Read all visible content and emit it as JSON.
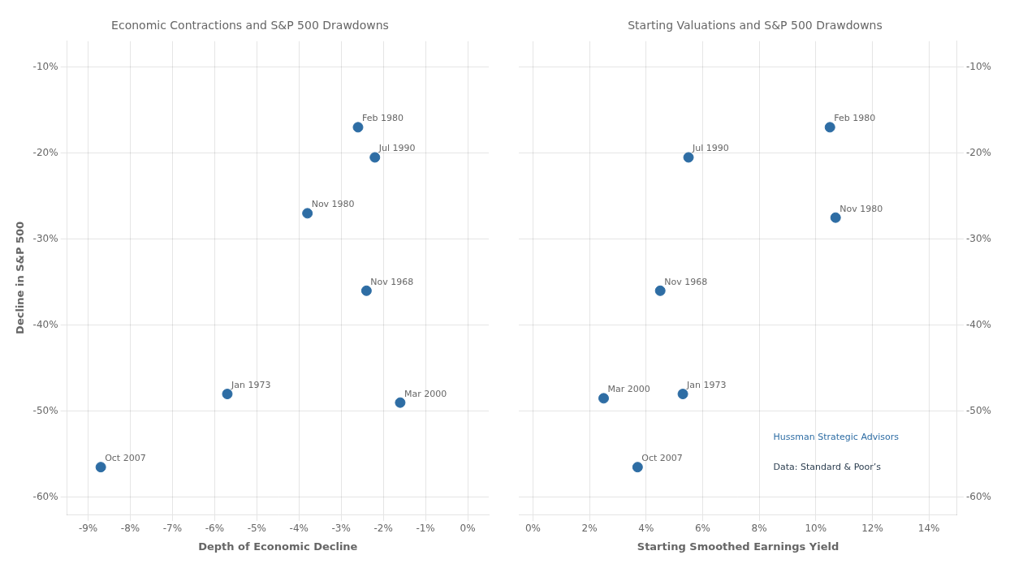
{
  "chart_data": [
    {
      "type": "scatter",
      "title": "Economic Contractions and S&P 500 Drawdowns",
      "x_label": "Depth of Economic Decline",
      "y_label": "Decline in S&P 500",
      "x": [
        -2.6,
        -2.2,
        -3.8,
        -2.4,
        -5.7,
        -1.6,
        -8.7
      ],
      "values": [
        -17.0,
        -20.5,
        -27.0,
        -36.0,
        -48.0,
        -49.0,
        -56.5
      ],
      "point_labels": [
        "Feb 1980",
        "Jul 1990",
        "Nov 1980",
        "Nov 1968",
        "Jan 1973",
        "Mar 2000",
        "Oct 2007"
      ],
      "color": "#2e6da4",
      "xlim": [
        -9.5,
        0.5
      ],
      "xticks": [
        {
          "value": -9,
          "label": "-9%"
        },
        {
          "value": -8,
          "label": "-8%"
        },
        {
          "value": -7,
          "label": "-7%"
        },
        {
          "value": -6,
          "label": "-6%"
        },
        {
          "value": -5,
          "label": "-5%"
        },
        {
          "value": -4,
          "label": "-4%"
        },
        {
          "value": -3,
          "label": "-3%"
        },
        {
          "value": -2,
          "label": "-2%"
        },
        {
          "value": -1,
          "label": "-1%"
        },
        {
          "value": 0,
          "label": "0%"
        }
      ],
      "ylim": [
        -62,
        -7
      ],
      "yticks": [
        {
          "value": -10,
          "label": "-10%"
        },
        {
          "value": -20,
          "label": "-20%"
        },
        {
          "value": -30,
          "label": "-30%"
        },
        {
          "value": -40,
          "label": "-40%"
        },
        {
          "value": -50,
          "label": "-50%"
        },
        {
          "value": -60,
          "label": "-60%"
        }
      ],
      "grid": true
    },
    {
      "type": "scatter",
      "title": "Starting Valuations and S&P 500 Drawdowns",
      "x_label": "Starting Smoothed Earnings Yield",
      "x": [
        10.5,
        5.5,
        10.7,
        4.5,
        5.3,
        2.5,
        3.7
      ],
      "values": [
        -17.0,
        -20.5,
        -27.5,
        -36.0,
        -48.0,
        -48.5,
        -56.5
      ],
      "point_labels": [
        "Feb 1980",
        "Jul 1990",
        "Nov 1980",
        "Nov 1968",
        "Jan 1973",
        "Mar 2000",
        "Oct 2007"
      ],
      "color": "#2e6da4",
      "xlim": [
        -0.5,
        15.0
      ],
      "xticks": [
        {
          "value": 0,
          "label": "0%"
        },
        {
          "value": 2,
          "label": "2%"
        },
        {
          "value": 4,
          "label": "4%"
        },
        {
          "value": 6,
          "label": "6%"
        },
        {
          "value": 8,
          "label": "8%"
        },
        {
          "value": 10,
          "label": "10%"
        },
        {
          "value": 12,
          "label": "12%"
        },
        {
          "value": 14,
          "label": "14%"
        }
      ],
      "ylim": [
        -62,
        -7
      ],
      "yticks": [
        {
          "value": -10,
          "label": "-10%"
        },
        {
          "value": -20,
          "label": "-20%"
        },
        {
          "value": -30,
          "label": "-30%"
        },
        {
          "value": -40,
          "label": "-40%"
        },
        {
          "value": -50,
          "label": "-50%"
        },
        {
          "value": -60,
          "label": "-60%"
        }
      ],
      "annotations": [
        {
          "text": "Hussman Strategic Advisors",
          "x": 8.5,
          "y": -52.5,
          "color": "#2e6da4"
        },
        {
          "text": "Data: Standard & Poor’s",
          "x": 8.5,
          "y": -56.0,
          "color": "#2c3e50"
        }
      ],
      "grid": true
    }
  ]
}
